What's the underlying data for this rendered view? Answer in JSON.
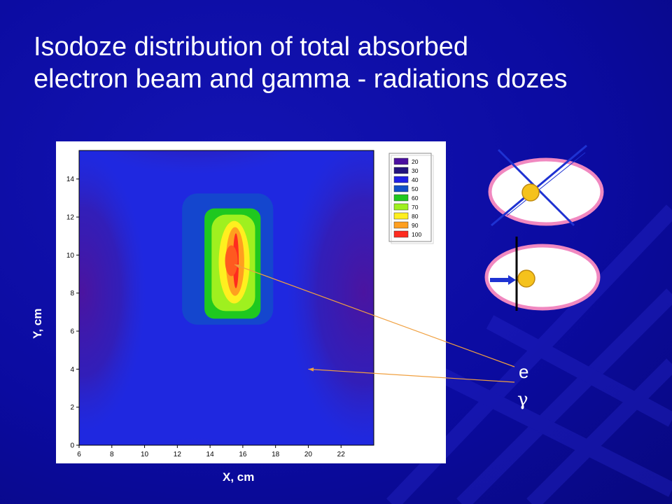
{
  "title": {
    "line1": "Isodoze distribution of total absorbed",
    "line2": "electron beam and gamma - radiations dozes"
  },
  "chart_data": {
    "type": "heatmap",
    "xlabel": "X, cm",
    "ylabel": "Y, cm",
    "xlim": [
      6,
      24
    ],
    "ylim": [
      0,
      15.5
    ],
    "xticks": [
      6,
      8,
      10,
      12,
      14,
      16,
      18,
      20,
      22
    ],
    "yticks": [
      0,
      2,
      4,
      6,
      8,
      10,
      12,
      14
    ],
    "grid": false,
    "legend_position": "top-right",
    "legend": [
      {
        "level": "20",
        "color": "#4b0fa0"
      },
      {
        "level": "30",
        "color": "#23137e"
      },
      {
        "level": "40",
        "color": "#1f20e6"
      },
      {
        "level": "50",
        "color": "#1150c8"
      },
      {
        "level": "60",
        "color": "#1fc81f"
      },
      {
        "level": "70",
        "color": "#9ff01f"
      },
      {
        "level": "80",
        "color": "#ffef1f"
      },
      {
        "level": "90",
        "color": "#ff9f1f"
      },
      {
        "level": "100",
        "color": "#ff2b1f"
      }
    ],
    "electron_peak": {
      "x": 15.3,
      "y": 9.7,
      "level": 100
    },
    "electron_region": {
      "x_range": [
        14,
        17
      ],
      "y_range": [
        7,
        12.8
      ]
    },
    "annotations": [
      {
        "label": "e",
        "target": {
          "x": 15.5,
          "y": 9.5
        }
      },
      {
        "label": "γ",
        "target": {
          "x": 20,
          "y": 4
        }
      }
    ]
  },
  "colors": {
    "background": "#0a0a9c",
    "ellipse_fill": "#ffffff",
    "ellipse_stroke": "#f088c0",
    "beam_line": "#1e32d2",
    "target": "#f5c21c",
    "annotation_line": "#f0a040"
  }
}
